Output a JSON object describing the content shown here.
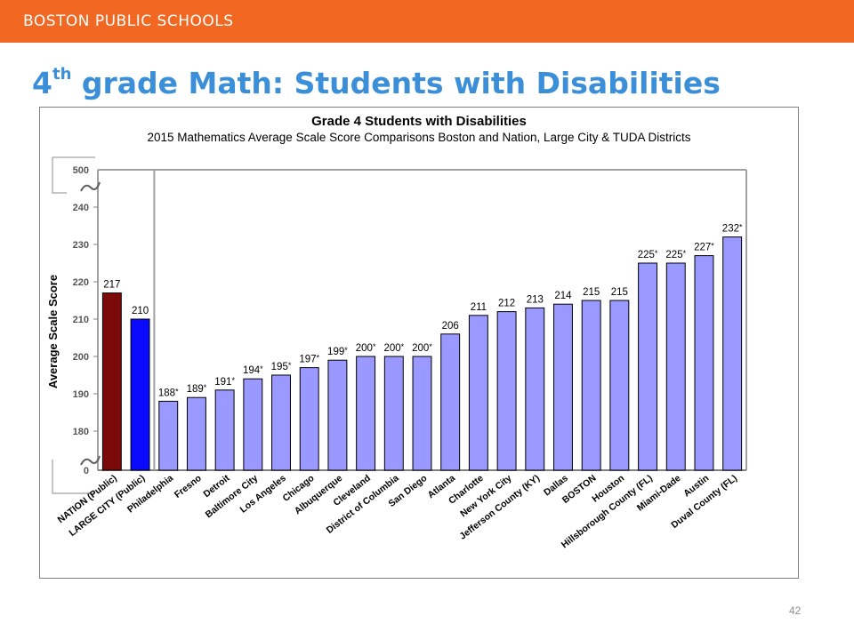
{
  "banner": {
    "text": "BOSTON PUBLIC SCHOOLS"
  },
  "slide": {
    "title_prefix": "4",
    "title_sup": "th",
    "title_rest": " grade Math: Students with Disabilities",
    "page_number": "42"
  },
  "colors": {
    "banner": "#f26722",
    "title": "#3b8fd9",
    "nation_bar": "#7b0a0a",
    "large_city_bar": "#0a0aff",
    "district_bar": "#9999ff"
  },
  "chart_data": {
    "type": "bar",
    "title": "Grade 4 Students with Disabilities",
    "subtitle": "2015 Mathematics Average Scale Score Comparisons Boston and Nation, Large City & TUDA Districts",
    "ylabel": "Average Scale Score",
    "ylim": [
      180,
      240
    ],
    "axis_break_labels": [
      "500",
      "0"
    ],
    "y_ticks": [
      180,
      190,
      200,
      210,
      220,
      230,
      240
    ],
    "grid": false,
    "categories": [
      "NATION (Public)",
      "LARGE CITY (Public)",
      "Philadelphia",
      "Fresno",
      "Detroit",
      "Baltimore City",
      "Los Angeles",
      "Chicago",
      "Albuquerque",
      "Cleveland",
      "District of Columbia",
      "San Diego",
      "Atlanta",
      "Charlotte",
      "New York City",
      "Jefferson County (KY)",
      "Dallas",
      "BOSTON",
      "Houston",
      "Hillsborough County (FL)",
      "Miami-Dade",
      "Austin",
      "Duval County (FL)"
    ],
    "values": [
      217,
      210,
      188,
      189,
      191,
      194,
      195,
      197,
      199,
      200,
      200,
      200,
      206,
      211,
      212,
      213,
      214,
      215,
      215,
      225,
      225,
      227,
      232
    ],
    "significance_marker": "*",
    "significant": [
      false,
      false,
      true,
      true,
      true,
      true,
      true,
      true,
      true,
      true,
      true,
      true,
      false,
      false,
      false,
      false,
      false,
      false,
      false,
      true,
      true,
      true,
      true
    ]
  }
}
